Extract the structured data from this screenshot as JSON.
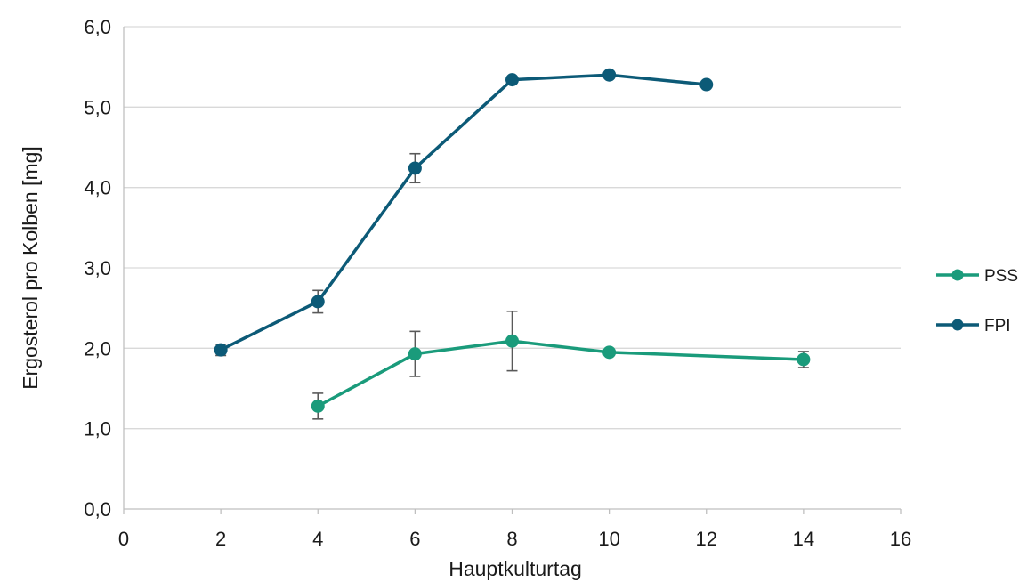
{
  "chart_data": {
    "type": "scatter",
    "title": "",
    "xlabel": "Hauptkulturtag",
    "ylabel": "Ergosterol pro Kolben [mg]",
    "xlim": [
      0,
      16
    ],
    "ylim": [
      0,
      6
    ],
    "x_ticks": [
      0,
      2,
      4,
      6,
      8,
      10,
      12,
      14,
      16
    ],
    "x_tick_labels": [
      "0",
      "2",
      "4",
      "6",
      "8",
      "10",
      "12",
      "14",
      "16"
    ],
    "y_ticks": [
      0,
      1,
      2,
      3,
      4,
      5,
      6
    ],
    "y_tick_labels": [
      "0,0",
      "1,0",
      "2,0",
      "3,0",
      "4,0",
      "5,0",
      "6,0"
    ],
    "grid": true,
    "legend_position": "right",
    "series": [
      {
        "name": "PSS",
        "color": "#1a9b7b",
        "mode": "lines+markers",
        "x": [
          4,
          6,
          8,
          10,
          14
        ],
        "y": [
          1.28,
          1.93,
          2.09,
          1.95,
          1.86
        ],
        "error": [
          0.16,
          0.28,
          0.37,
          0.04,
          0.1
        ]
      },
      {
        "name": "FPI",
        "color": "#0c5a77",
        "mode": "lines+markers",
        "x": [
          2,
          4,
          6,
          8,
          10,
          12
        ],
        "y": [
          1.98,
          2.58,
          4.24,
          5.34,
          5.4,
          5.28
        ],
        "error": [
          0.07,
          0.14,
          0.18,
          0.03,
          0.02,
          0.02
        ]
      }
    ]
  }
}
